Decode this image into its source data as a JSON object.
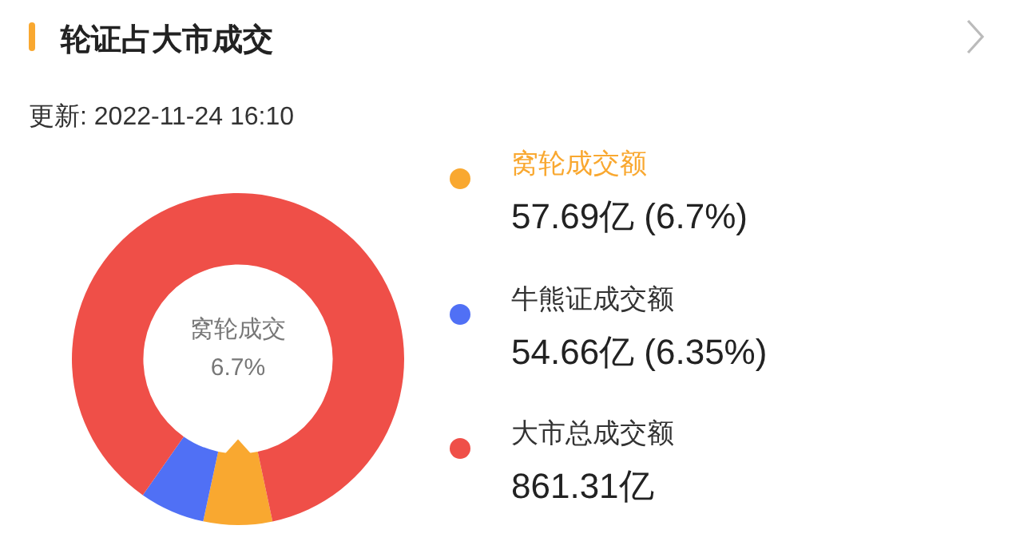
{
  "chart_data": {
    "type": "donut",
    "title": "轮证占大市成交",
    "subtitle": "更新: 2022-11-24 16:10",
    "categories": [
      "窝轮成交额",
      "牛熊证成交额",
      "大市总成交额"
    ],
    "values": [
      6.7,
      6.35,
      86.95
    ],
    "colors": [
      "#f9a830",
      "#5070f5",
      "#ef4f48"
    ],
    "annotations": [
      "窝轮成交",
      "6.7%",
      "57.69亿 (6.7%)",
      "54.66亿 (6.35%)",
      "861.31亿"
    ],
    "legend": "right"
  }
}
